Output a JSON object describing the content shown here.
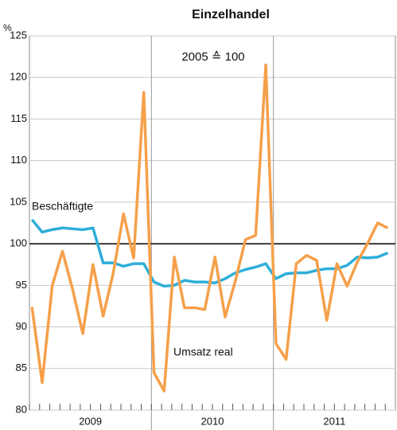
{
  "chart_data": {
    "type": "line",
    "title": "Einzelhandel",
    "y_unit": "%",
    "annotation": "2005 ≙ 100",
    "categories": [
      null,
      null,
      null,
      null,
      null,
      null,
      null,
      null,
      null,
      null,
      null,
      null,
      null,
      null,
      null,
      null,
      null,
      null,
      null,
      null,
      null,
      null,
      null,
      null,
      null,
      null,
      null,
      null,
      null,
      null,
      null,
      null,
      null,
      null,
      null,
      null
    ],
    "groups": [
      "2009",
      "2010",
      "2011"
    ],
    "reference_line": 100,
    "series": [
      {
        "name": "Beschäftigte",
        "color": "#2eaed9",
        "values": [
          102.9,
          101.4,
          101.7,
          101.9,
          101.8,
          101.7,
          101.9,
          97.7,
          97.7,
          97.3,
          97.6,
          97.6,
          95.4,
          94.9,
          95,
          95.6,
          95.4,
          95.4,
          95.3,
          95.8,
          96.5,
          96.9,
          97.2,
          97.6,
          95.8,
          96.4,
          96.5,
          96.5,
          96.8,
          97,
          97,
          97.4,
          98.4,
          98.3,
          98.4,
          98.9
        ]
      },
      {
        "name": "Umsatz real",
        "color": "#f5a04a",
        "values": [
          92.4,
          83.3,
          95,
          99.1,
          94.5,
          89.2,
          97.5,
          91.3,
          96.5,
          103.6,
          98.3,
          118.2,
          84.5,
          82.3,
          98.4,
          92.3,
          92.3,
          92.1,
          98.4,
          91.2,
          95.5,
          100.5,
          101,
          121.5,
          88,
          86.1,
          97.6,
          98.6,
          98,
          90.8,
          97.6,
          94.9,
          97.8,
          100,
          102.5,
          101.9
        ]
      }
    ],
    "ylim": [
      80,
      125
    ],
    "yticks": [
      80,
      85,
      90,
      95,
      100,
      105,
      110,
      115,
      120,
      125
    ],
    "grid": true
  }
}
